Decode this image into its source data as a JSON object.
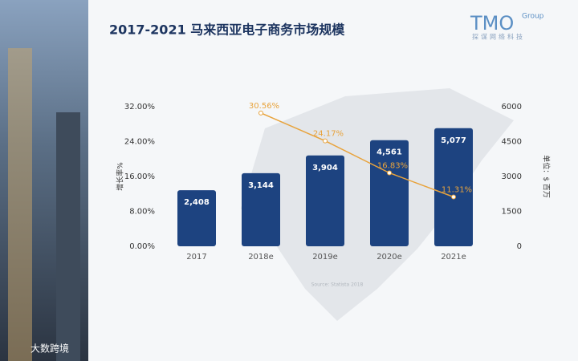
{
  "chart_data": {
    "type": "bar",
    "title": "2017-2021 马来西亚电子商务市场规模",
    "logo": "TMO",
    "logo_sub": "Group",
    "logo_tagline": "探谋网络科技",
    "source": "Source: Statista 2018",
    "watermark": "大数跨境",
    "y_label": "增长率%",
    "y2_label": "单位：$ 百万",
    "categories": [
      "2017",
      "2018e",
      "2019e",
      "2020e",
      "2021e"
    ],
    "ylim": [
      0,
      32
    ],
    "yticks": [
      {
        "value": 0,
        "label": "0.00%"
      },
      {
        "value": 8,
        "label": "8.00%"
      },
      {
        "value": 16,
        "label": "16.00%"
      },
      {
        "value": 24,
        "label": "24.00%"
      },
      {
        "value": 32,
        "label": "32.00%"
      }
    ],
    "y2lim": [
      0,
      6000
    ],
    "y2ticks": [
      0,
      1500,
      3000,
      4500,
      6000
    ],
    "series": [
      {
        "type": "bar",
        "axis": "y2",
        "color": "#1d4380",
        "values": [
          2408,
          3144,
          3904,
          4561,
          5077
        ],
        "value_labels": [
          "2,408",
          "3,144",
          "3,904",
          "4,561",
          "5,077"
        ]
      },
      {
        "type": "line",
        "color": "#e8a33c",
        "values": [
          null,
          30.56,
          24.17,
          16.83,
          11.31
        ],
        "value_labels": [
          null,
          "30.56%",
          "24.17%",
          "16.83%",
          "11.31%"
        ]
      }
    ]
  }
}
